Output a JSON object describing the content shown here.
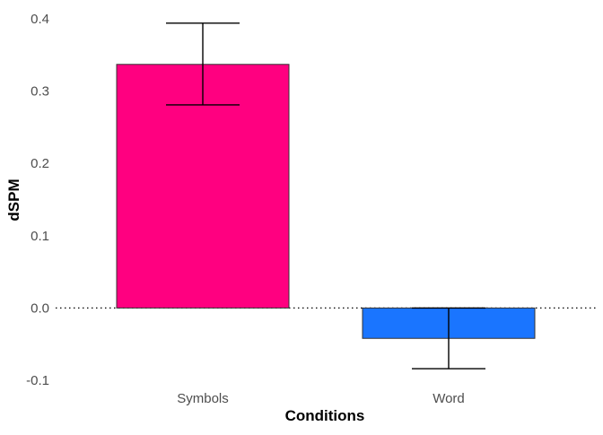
{
  "chart_data": {
    "type": "bar",
    "title": "",
    "xlabel": "Conditions",
    "ylabel": "dSPM",
    "categories": [
      "Symbols",
      "Word"
    ],
    "values": [
      0.337,
      -0.042
    ],
    "error_bars": [
      {
        "category": "Symbols",
        "lower": 0.281,
        "upper": 0.394
      },
      {
        "category": "Word",
        "lower": -0.084,
        "upper": 0.0
      }
    ],
    "bar_colors": [
      "#ff0080",
      "#1a75ff"
    ],
    "bar_outline_color": "#333333",
    "ylim": [
      -0.1,
      0.4
    ],
    "yticks": [
      -0.1,
      0.0,
      0.1,
      0.2,
      0.3,
      0.4
    ],
    "ytick_labels": [
      "-0.1",
      "0.0",
      "0.1",
      "0.2",
      "0.3",
      "0.4"
    ],
    "reference_line": {
      "y": 0,
      "style": "dotted"
    },
    "grid": false,
    "legend": "none"
  }
}
